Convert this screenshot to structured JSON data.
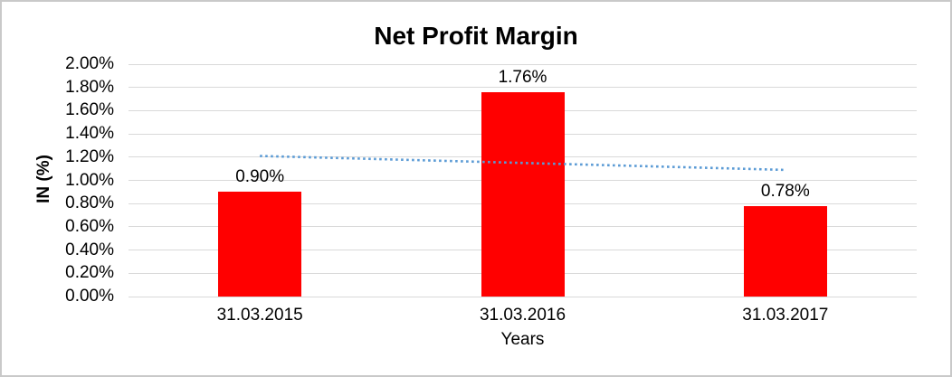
{
  "window": {
    "background": "#ffffff",
    "border_color": "#c9c9c9"
  },
  "chart_data": {
    "type": "bar",
    "title": "Net Profit Margin",
    "categories": [
      "31.03.2015",
      "31.03.2016",
      "31.03.2017"
    ],
    "values": [
      0.9,
      1.76,
      0.78
    ],
    "data_labels": [
      "0.90%",
      "1.76%",
      "0.78%"
    ],
    "xlabel": "Years",
    "ylabel": "IN (%)",
    "ylim": [
      0,
      2.0
    ],
    "ytick_step": 0.2,
    "ytick_labels": [
      "0.00%",
      "0.20%",
      "0.40%",
      "0.60%",
      "0.80%",
      "1.00%",
      "1.20%",
      "1.40%",
      "1.60%",
      "1.80%",
      "2.00%"
    ],
    "grid": true,
    "legend": "none",
    "bar_color": "#ff0000",
    "gridline_color": "#d9d9d9",
    "text_color": "#000000",
    "trendline": {
      "type": "linear",
      "style": "dotted",
      "color": "#5b9bd5",
      "start_value": 1.21,
      "end_value": 1.09
    }
  }
}
